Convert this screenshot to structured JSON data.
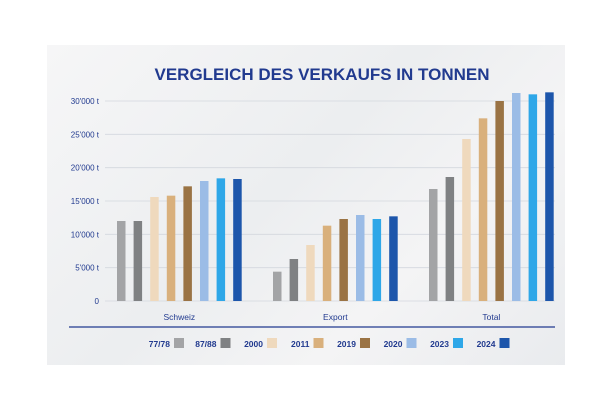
{
  "chart_data": {
    "type": "bar",
    "title": "VERGLEICH DES VERKAUFS IN TONNEN",
    "categories": [
      "Schweiz",
      "Export",
      "Total"
    ],
    "ylim": [
      0,
      30000
    ],
    "yticks": [
      0,
      5000,
      10000,
      15000,
      20000,
      25000,
      30000
    ],
    "ytick_labels": [
      "0",
      "5'000 t",
      "10'000 t",
      "15'000 t",
      "20'000 t",
      "25'000 t",
      "30'000 t"
    ],
    "grid": true,
    "legend_position": "bottom",
    "series": [
      {
        "name": "77/78",
        "color": "#a3a4a6",
        "values": [
          12000,
          4400,
          16800
        ]
      },
      {
        "name": "87/88",
        "color": "#7f8183",
        "values": [
          12000,
          6300,
          18600
        ]
      },
      {
        "name": "2000",
        "color": "#efd9bd",
        "values": [
          15600,
          8400,
          24300
        ]
      },
      {
        "name": "2011",
        "color": "#d9b07c",
        "values": [
          15800,
          11300,
          27400
        ]
      },
      {
        "name": "2019",
        "color": "#9a7344",
        "values": [
          17200,
          12300,
          30000
        ]
      },
      {
        "name": "2020",
        "color": "#9bbce6",
        "values": [
          18000,
          12900,
          31200
        ]
      },
      {
        "name": "2023",
        "color": "#2ea7e8",
        "values": [
          18400,
          12300,
          31000
        ]
      },
      {
        "name": "2024",
        "color": "#1d56ab",
        "values": [
          18300,
          12700,
          31300
        ]
      }
    ],
    "axis_color": "#213a8f",
    "grid_color": "#d3d7de"
  }
}
